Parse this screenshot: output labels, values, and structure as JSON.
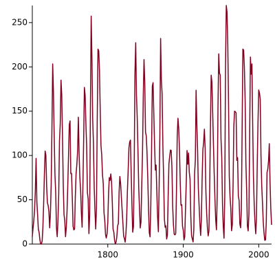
{
  "chart_data": {
    "type": "line",
    "x": [
      1700,
      1701,
      1702,
      1703,
      1704,
      1705,
      1706,
      1707,
      1708,
      1709,
      1710,
      1711,
      1712,
      1713,
      1714,
      1715,
      1716,
      1717,
      1718,
      1719,
      1720,
      1721,
      1722,
      1723,
      1724,
      1725,
      1726,
      1727,
      1728,
      1729,
      1730,
      1731,
      1732,
      1733,
      1734,
      1735,
      1736,
      1737,
      1738,
      1739,
      1740,
      1741,
      1742,
      1743,
      1744,
      1745,
      1746,
      1747,
      1748,
      1749,
      1750,
      1751,
      1752,
      1753,
      1754,
      1755,
      1756,
      1757,
      1758,
      1759,
      1760,
      1761,
      1762,
      1763,
      1764,
      1765,
      1766,
      1767,
      1768,
      1769,
      1770,
      1771,
      1772,
      1773,
      1774,
      1775,
      1776,
      1777,
      1778,
      1779,
      1780,
      1781,
      1782,
      1783,
      1784,
      1785,
      1786,
      1787,
      1788,
      1789,
      1790,
      1791,
      1792,
      1793,
      1794,
      1795,
      1796,
      1797,
      1798,
      1799,
      1800,
      1801,
      1802,
      1803,
      1804,
      1805,
      1806,
      1807,
      1808,
      1809,
      1810,
      1811,
      1812,
      1813,
      1814,
      1815,
      1816,
      1817,
      1818,
      1819,
      1820,
      1821,
      1822,
      1823,
      1824,
      1825,
      1826,
      1827,
      1828,
      1829,
      1830,
      1831,
      1832,
      1833,
      1834,
      1835,
      1836,
      1837,
      1838,
      1839,
      1840,
      1841,
      1842,
      1843,
      1844,
      1845,
      1846,
      1847,
      1848,
      1849,
      1850,
      1851,
      1852,
      1853,
      1854,
      1855,
      1856,
      1857,
      1858,
      1859,
      1860,
      1861,
      1862,
      1863,
      1864,
      1865,
      1866,
      1867,
      1868,
      1869,
      1870,
      1871,
      1872,
      1873,
      1874,
      1875,
      1876,
      1877,
      1878,
      1879,
      1880,
      1881,
      1882,
      1883,
      1884,
      1885,
      1886,
      1887,
      1888,
      1889,
      1890,
      1891,
      1892,
      1893,
      1894,
      1895,
      1896,
      1897,
      1898,
      1899,
      1900,
      1901,
      1902,
      1903,
      1904,
      1905,
      1906,
      1907,
      1908,
      1909,
      1910,
      1911,
      1912,
      1913,
      1914,
      1915,
      1916,
      1917,
      1918,
      1919,
      1920,
      1921,
      1922,
      1923,
      1924,
      1925,
      1926,
      1927,
      1928,
      1929,
      1930,
      1931,
      1932,
      1933,
      1934,
      1935,
      1936,
      1937,
      1938,
      1939,
      1940,
      1941,
      1942,
      1943,
      1944,
      1945,
      1946,
      1947,
      1948,
      1949,
      1950,
      1951,
      1952,
      1953,
      1954,
      1955,
      1956,
      1957,
      1958,
      1959,
      1960,
      1961,
      1962,
      1963,
      1964,
      1965,
      1966,
      1967,
      1968,
      1969,
      1970,
      1971,
      1972,
      1973,
      1974,
      1975,
      1976,
      1977,
      1978,
      1979,
      1980,
      1981,
      1982,
      1983,
      1984,
      1985,
      1986,
      1987,
      1988,
      1989,
      1990,
      1991,
      1992,
      1993,
      1994,
      1995,
      1996,
      1997,
      1998,
      1999,
      2000,
      2001,
      2002,
      2003,
      2004,
      2005,
      2006,
      2007,
      2008,
      2009,
      2010,
      2011,
      2012,
      2013,
      2014,
      2015,
      2016,
      2017
    ],
    "series": [
      {
        "color": "#800020",
        "values": [
          8.3,
          18.3,
          26.7,
          38.3,
          60.0,
          96.7,
          48.3,
          33.3,
          16.7,
          13.3,
          5.0,
          0,
          0,
          3.3,
          18.3,
          45.0,
          78.3,
          105.0,
          100.0,
          65.0,
          46.7,
          43.3,
          36.7,
          18.3,
          35.0,
          66.7,
          130.0,
          203.3,
          171.7,
          121.7,
          78.3,
          58.3,
          18.3,
          8.3,
          26.7,
          56.7,
          116.7,
          135.0,
          185.0,
          168.3,
          121.7,
          66.7,
          33.3,
          26.7,
          8.3,
          18.3,
          36.7,
          66.7,
          100.0,
          134.8,
          139.0,
          79.5,
          79.7,
          51.2,
          20.3,
          16.0,
          17.0,
          54.0,
          79.3,
          90.0,
          104.8,
          143.2,
          102.0,
          75.2,
          60.7,
          34.8,
          19.0,
          63.0,
          116.3,
          176.8,
          168.0,
          136.0,
          110.8,
          58.0,
          51.0,
          11.7,
          33.0,
          154.2,
          257.3,
          209.8,
          141.3,
          113.5,
          64.2,
          38.0,
          17.0,
          40.2,
          138.2,
          220.0,
          218.2,
          196.8,
          149.8,
          111.0,
          100.0,
          78.2,
          68.3,
          35.5,
          26.7,
          10.7,
          6.8,
          11.3,
          24.2,
          56.7,
          75.0,
          71.8,
          79.2,
          70.3,
          46.8,
          16.8,
          13.5,
          4.2,
          0,
          2.3,
          8.3,
          20.3,
          23.2,
          59.0,
          76.3,
          68.3,
          52.9,
          38.5,
          24.2,
          9.2,
          6.3,
          2.2,
          11.4,
          28.2,
          59.9,
          83.0,
          108.5,
          115.2,
          117.4,
          80.8,
          44.3,
          13.4,
          19.5,
          85.8,
          192.7,
          227.3,
          168.7,
          143.0,
          105.5,
          63.3,
          40.3,
          18.1,
          25.1,
          65.8,
          102.7,
          166.3,
          208.3,
          182.5,
          126.3,
          122.0,
          102.7,
          74.1,
          39.0,
          12.7,
          8.2,
          43.4,
          104.4,
          178.3,
          182.2,
          146.6,
          112.1,
          83.5,
          89.2,
          57.8,
          30.7,
          13.9,
          62.8,
          123.6,
          232.0,
          185.3,
          169.2,
          110.1,
          74.5,
          28.3,
          18.9,
          20.7,
          5.7,
          10.0,
          53.7,
          90.5,
          99.0,
          106.1,
          105.8,
          86.3,
          42.4,
          21.8,
          11.2,
          10.4,
          11.8,
          59.5,
          121.7,
          142.0,
          130.0,
          106.6,
          69.4,
          43.8,
          44.4,
          20.2,
          15.7,
          4.6,
          8.5,
          40.8,
          70.1,
          105.5,
          90.1,
          102.8,
          80.9,
          73.2,
          30.9,
          9.5,
          6.0,
          2.4,
          16.1,
          79.0,
          95.0,
          173.6,
          134.6,
          105.7,
          62.7,
          43.5,
          23.7,
          9.7,
          27.9,
          74.0,
          106.5,
          114.7,
          129.7,
          108.2,
          59.4,
          35.1,
          18.6,
          9.2,
          14.6,
          60.2,
          132.8,
          190.6,
          182.6,
          148.0,
          113.0,
          79.2,
          50.8,
          27.1,
          16.1,
          55.3,
          154.3,
          214.7,
          193.0,
          190.7,
          118.9,
          98.3,
          45.0,
          20.1,
          6.6,
          54.2,
          200.7,
          269.3,
          261.7,
          225.1,
          159.0,
          76.4,
          53.4,
          39.9,
          15.0,
          22.0,
          66.8,
          132.9,
          150.0,
          149.4,
          148.0,
          94.4,
          97.6,
          54.1,
          49.2,
          22.5,
          18.4,
          39.3,
          131.0,
          220.1,
          218.9,
          198.9,
          162.4,
          91.0,
          60.5,
          20.6,
          14.8,
          33.9,
          123.0,
          211.1,
          191.8,
          203.3,
          133.0,
          76.1,
          44.9,
          25.1,
          11.6,
          28.9,
          88.3,
          136.3,
          173.9,
          170.4,
          163.6,
          99.3,
          65.3,
          45.8,
          24.7,
          12.6,
          4.2,
          4.8,
          24.9,
          80.8,
          84.5,
          94.0,
          113.3,
          69.8,
          39.8,
          21.7
        ]
      }
    ],
    "xlim": [
      1700,
      2017
    ],
    "xticks": [
      1800,
      1900,
      2000
    ],
    "ylim": [
      0,
      269.3
    ],
    "yticks": [
      0,
      50,
      100,
      150,
      200,
      250
    ]
  }
}
